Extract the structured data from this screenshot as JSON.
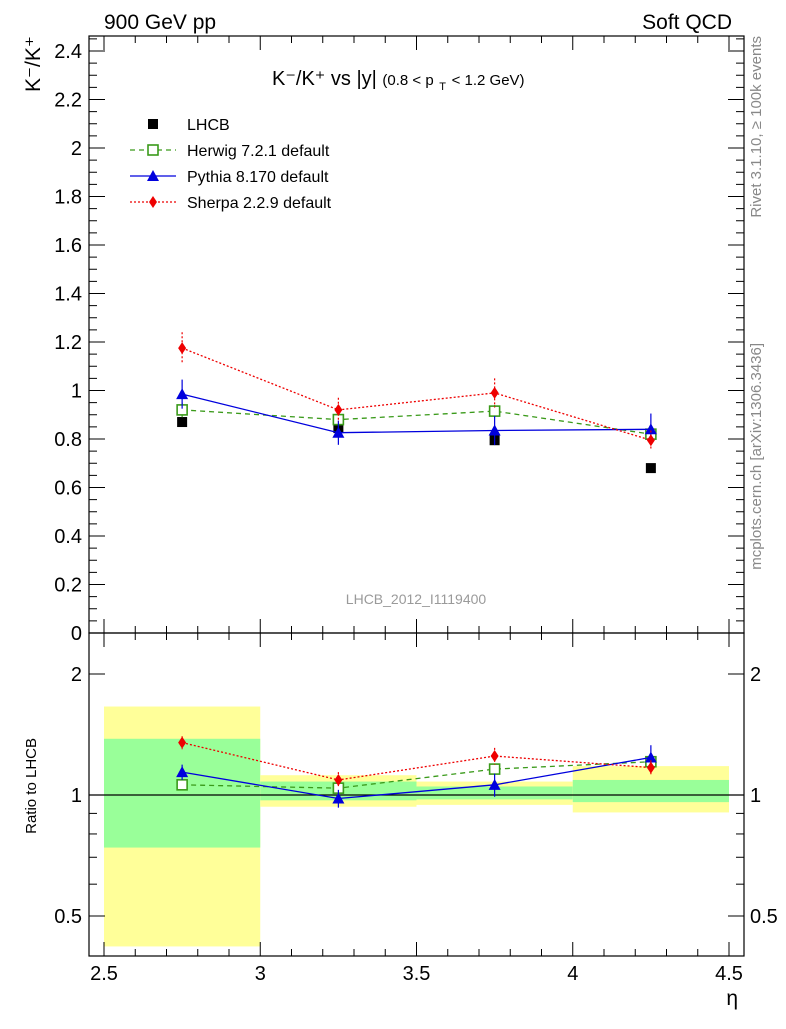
{
  "header": {
    "left": "900 GeV pp",
    "right": "Soft QCD"
  },
  "side_labels": {
    "top": "Rivet 3.1.10, ≥ 100k events",
    "bottom": "mcplots.cern.ch [arXiv:1306.3436]"
  },
  "watermark": "LHCB_2012_I1119400",
  "chart_data": [
    {
      "type": "line",
      "title": {
        "main": "K⁻/K⁺ vs |y|",
        "cut": "(0.8 < p",
        "cut_sub": "T",
        "cut_end": " < 1.2 GeV)"
      },
      "ylabel": "K⁻/K⁺",
      "xlim": [
        2.5,
        4.5
      ],
      "ylim": [
        0,
        2.46
      ],
      "yticks": [
        "0",
        "0.2",
        "0.4",
        "0.6",
        "0.8",
        "1",
        "1.2",
        "1.4",
        "1.6",
        "1.8",
        "2",
        "2.2",
        "2.4"
      ],
      "x": [
        2.75,
        3.25,
        3.75,
        4.25
      ],
      "legend_position": "top-left",
      "series": [
        {
          "name": "LHCB",
          "color": "#000000",
          "marker": "filled-square",
          "line": "none",
          "values": [
            0.87,
            0.845,
            0.795,
            0.68
          ],
          "errors": [
            0.006,
            0.006,
            0.006,
            0.006
          ]
        },
        {
          "name": "Herwig 7.2.1 default",
          "color": "#3a9a1a",
          "marker": "open-square",
          "line": "dashed",
          "values": [
            0.92,
            0.88,
            0.915,
            0.82
          ],
          "errors": [
            0.03,
            0.02,
            0.025,
            0.03
          ]
        },
        {
          "name": "Pythia 8.170 default",
          "color": "#0000dd",
          "marker": "filled-triangle",
          "line": "solid",
          "values": [
            0.985,
            0.826,
            0.835,
            0.84
          ],
          "errors": [
            0.06,
            0.05,
            0.06,
            0.065
          ]
        },
        {
          "name": "Sherpa 2.2.9 default",
          "color": "#ee0000",
          "marker": "filled-diamond",
          "line": "dotted",
          "values": [
            1.175,
            0.92,
            0.99,
            0.795
          ],
          "errors": [
            0.065,
            0.05,
            0.06,
            0.04
          ]
        }
      ]
    },
    {
      "type": "line",
      "ylabel": "Ratio to LHCB",
      "xlabel": "η",
      "scale": "log",
      "ylim": [
        0.42,
        2.3
      ],
      "yticks": [
        "0.5",
        "1",
        "2"
      ],
      "xticks": [
        "2.5",
        "3",
        "3.5",
        "4",
        "4.5"
      ],
      "reference": 1,
      "bands": [
        {
          "xmin": 2.5,
          "xmax": 3.0,
          "green": [
            0.74,
            1.38
          ],
          "yellow": [
            0.42,
            1.66
          ]
        },
        {
          "xmin": 3.0,
          "xmax": 3.5,
          "green": [
            0.97,
            1.08
          ],
          "yellow": [
            0.935,
            1.12
          ]
        },
        {
          "xmin": 3.5,
          "xmax": 4.0,
          "green": [
            0.975,
            1.05
          ],
          "yellow": [
            0.945,
            1.08
          ]
        },
        {
          "xmin": 4.0,
          "xmax": 4.5,
          "green": [
            0.96,
            1.09
          ],
          "yellow": [
            0.905,
            1.18
          ]
        }
      ],
      "x": [
        2.75,
        3.25,
        3.75,
        4.25
      ],
      "series": [
        {
          "name": "Herwig 7.2.1 default",
          "color": "#3a9a1a",
          "marker": "open-square",
          "line": "dashed",
          "values": [
            1.06,
            1.04,
            1.16,
            1.21
          ],
          "errors": [
            0.03,
            0.025,
            0.03,
            0.04
          ]
        },
        {
          "name": "Pythia 8.170 default",
          "color": "#0000dd",
          "marker": "filled-triangle",
          "line": "solid",
          "values": [
            1.14,
            0.98,
            1.06,
            1.24
          ],
          "errors": [
            0.05,
            0.05,
            0.07,
            0.09
          ]
        },
        {
          "name": "Sherpa 2.2.9 default",
          "color": "#ee0000",
          "marker": "filled-diamond",
          "line": "dotted",
          "values": [
            1.35,
            1.09,
            1.25,
            1.17
          ],
          "errors": [
            0.05,
            0.05,
            0.06,
            0.05
          ]
        }
      ]
    }
  ]
}
